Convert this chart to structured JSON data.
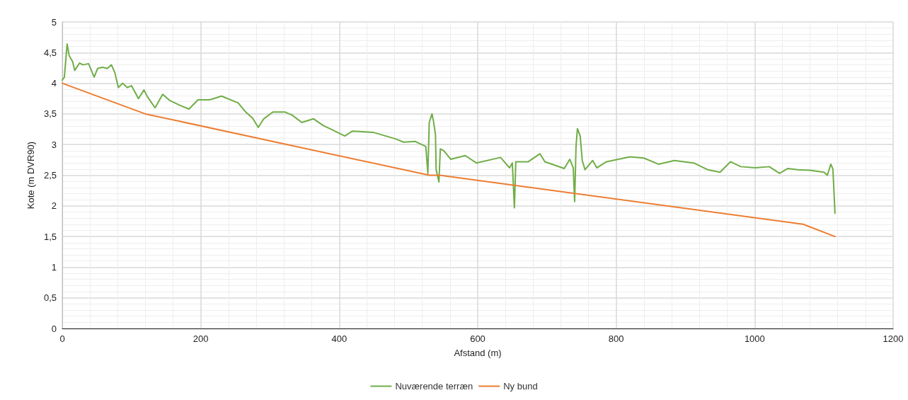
{
  "chart_data": {
    "type": "line",
    "xlabel": "Afstand (m)",
    "ylabel": "Kote (m DVR90)",
    "xlim": [
      0,
      1200
    ],
    "xticks": [
      0,
      200,
      400,
      600,
      800,
      1000,
      1200
    ],
    "ylim": [
      0,
      5
    ],
    "yticks": [
      0,
      {
        "value": 0.5,
        "label": "0,5"
      },
      1,
      {
        "value": 1.5,
        "label": "1,5"
      },
      2,
      {
        "value": 2.5,
        "label": "2,5"
      },
      3,
      {
        "value": 3.5,
        "label": "3,5"
      },
      4,
      {
        "value": 4.5,
        "label": "4,5"
      },
      5
    ],
    "grid": true,
    "legend": "bottom",
    "marker": "none",
    "line_style": "solid",
    "series": [
      {
        "name": "Nuværende terræn",
        "color": "#70ad47",
        "x": [
          0,
          3,
          7,
          10,
          15,
          18,
          25,
          30,
          38,
          46,
          51,
          58,
          65,
          71,
          76,
          81,
          87,
          94,
          100,
          110,
          118,
          123,
          134,
          145,
          155,
          172,
          183,
          196,
          213,
          230,
          254,
          265,
          275,
          283,
          291,
          304,
          322,
          332,
          346,
          363,
          377,
          390,
          408,
          419,
          449,
          482,
          493,
          510,
          525,
          528,
          530,
          534,
          536,
          539,
          540,
          544,
          546,
          551,
          561,
          582,
          598,
          633,
          646,
          650,
          653,
          655,
          673,
          690,
          697,
          725,
          733,
          738,
          740,
          742,
          744,
          748,
          751,
          755,
          766,
          772,
          786,
          820,
          840,
          861,
          884,
          912,
          932,
          950,
          965,
          980,
          1001,
          1021,
          1036,
          1048,
          1062,
          1080,
          1100,
          1105,
          1110,
          1113,
          1116
        ],
        "values": [
          4.05,
          4.1,
          4.64,
          4.45,
          4.35,
          4.21,
          4.33,
          4.3,
          4.32,
          4.1,
          4.24,
          4.26,
          4.24,
          4.3,
          4.17,
          3.93,
          4.0,
          3.93,
          3.96,
          3.75,
          3.89,
          3.78,
          3.6,
          3.82,
          3.72,
          3.63,
          3.58,
          3.73,
          3.73,
          3.79,
          3.68,
          3.53,
          3.43,
          3.28,
          3.42,
          3.53,
          3.53,
          3.48,
          3.36,
          3.42,
          3.31,
          3.24,
          3.14,
          3.22,
          3.2,
          3.09,
          3.04,
          3.05,
          2.97,
          2.53,
          3.36,
          3.5,
          3.39,
          3.16,
          2.59,
          2.39,
          2.93,
          2.9,
          2.76,
          2.82,
          2.7,
          2.79,
          2.62,
          2.7,
          1.97,
          2.72,
          2.72,
          2.85,
          2.72,
          2.61,
          2.76,
          2.62,
          2.07,
          2.97,
          3.26,
          3.14,
          2.74,
          2.59,
          2.74,
          2.62,
          2.72,
          2.8,
          2.78,
          2.68,
          2.74,
          2.7,
          2.59,
          2.55,
          2.72,
          2.64,
          2.62,
          2.64,
          2.53,
          2.61,
          2.59,
          2.58,
          2.55,
          2.5,
          2.68,
          2.6,
          1.88
        ]
      },
      {
        "name": "Ny bund",
        "color": "#ed7d31",
        "x": [
          0,
          120,
          530,
          545,
          1070,
          1116
        ],
        "values": [
          4.0,
          3.5,
          2.5,
          2.5,
          1.7,
          1.5
        ]
      }
    ]
  }
}
